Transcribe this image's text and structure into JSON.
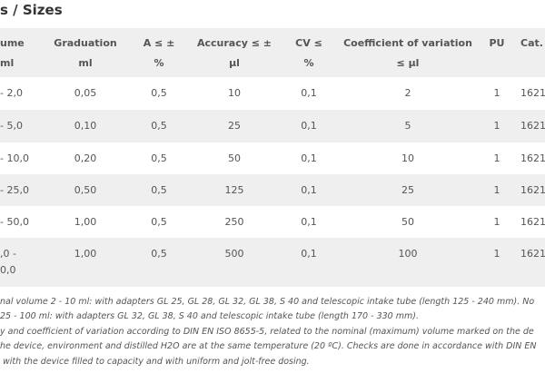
{
  "title": "s / Sizes",
  "table": {
    "header": [
      [
        "ume",
        "ml"
      ],
      [
        "Graduation",
        "ml"
      ],
      [
        "A ≤ ±",
        "%"
      ],
      [
        "Accuracy ≤ ±",
        "µl"
      ],
      [
        "CV ≤",
        "%"
      ],
      [
        "Coefficient of variation",
        "≤ µl"
      ],
      [
        "PU"
      ],
      [
        "Cat."
      ]
    ],
    "rows": [
      [
        "- 2,0",
        "0,05",
        "0,5",
        "10",
        "0,1",
        "2",
        "1",
        "1621"
      ],
      [
        "- 5,0",
        "0,10",
        "0,5",
        "25",
        "0,1",
        "5",
        "1",
        "1621"
      ],
      [
        "- 10,0",
        "0,20",
        "0,5",
        "50",
        "0,1",
        "10",
        "1",
        "1621"
      ],
      [
        "- 25,0",
        "0,50",
        "0,5",
        "125",
        "0,1",
        "25",
        "1",
        "1621"
      ],
      [
        "- 50,0",
        "1,00",
        "0,5",
        "250",
        "0,1",
        "50",
        "1",
        "1621"
      ],
      [
        [
          ",0 -",
          "0,0"
        ],
        "1,00",
        "0,5",
        "500",
        "0,1",
        "100",
        "1",
        "1621"
      ]
    ]
  },
  "notes": [
    "nal volume 2 - 10 ml: with adapters GL 25, GL 28, GL 32, GL 38, S 40 and telescopic intake tube (length 125 - 240 mm). No",
    "25 - 100 ml: with adapters GL 32, GL 38, S 40 and telescopic intake tube (length 170 - 330 mm).",
    "y and coefficient of variation according to DIN EN ISO 8655-5, related to the nominal (maximum) volume marked on the de",
    "he device, environment and distilled H2O are at the same temperature (20 ºC). Checks are done in accordance with DIN EN",
    " with the device filled to capacity and with uniform and jolt-free dosing."
  ]
}
